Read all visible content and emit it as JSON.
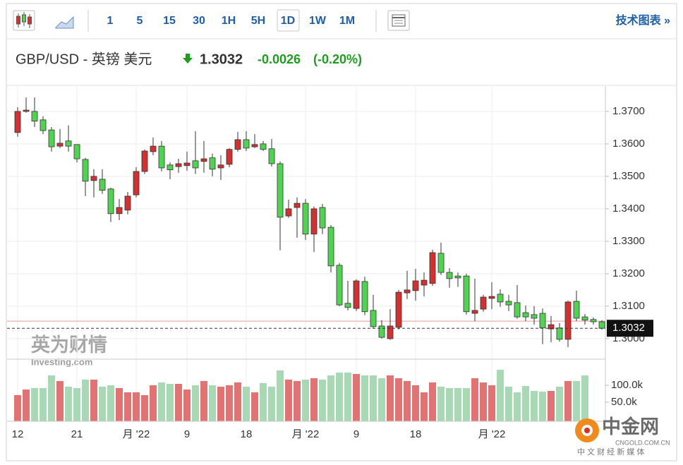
{
  "toolbar": {
    "intervals": [
      "1",
      "5",
      "15",
      "30",
      "1H",
      "5H",
      "1D",
      "1W",
      "1M"
    ],
    "link": "技术图表 »"
  },
  "header": {
    "symbol": "GBP/USD - 英镑 美元",
    "price": "1.3032",
    "change": "-0.0026",
    "change_pct": "(-0.20%)"
  },
  "watermarks": {
    "brand_cn": "英为财情",
    "brand_en": "Investing.com",
    "site": "中金网",
    "site_url": "CNGOLD.COM.CN",
    "site_tagline": "中 文 财 经 新 媒 体"
  },
  "chart_data": {
    "type": "candlestick",
    "categories": [
      "12",
      null,
      null,
      null,
      null,
      null,
      null,
      "21",
      null,
      null,
      null,
      null,
      null,
      null,
      "月 '22",
      null,
      null,
      null,
      null,
      null,
      "9",
      null,
      null,
      null,
      null,
      null,
      null,
      "18",
      null,
      null,
      null,
      null,
      null,
      null,
      "月 '22",
      null,
      null,
      null,
      null,
      null,
      "9",
      null,
      null,
      null,
      null,
      null,
      null,
      "18",
      null,
      null,
      null,
      null,
      null,
      null,
      null,
      null,
      "月 '22",
      null,
      null,
      null,
      null,
      null,
      null,
      null,
      null,
      null,
      null,
      null,
      null,
      null
    ],
    "open": [
      1.3635,
      1.37,
      1.37,
      1.3674,
      1.3643,
      1.3593,
      1.3609,
      1.3598,
      1.3552,
      1.3487,
      1.3491,
      1.3461,
      1.3385,
      1.3396,
      1.3443,
      1.3515,
      1.3576,
      1.3593,
      1.3535,
      1.353,
      1.3533,
      1.3548,
      1.3546,
      1.3557,
      1.3526,
      1.3537,
      1.3583,
      1.3613,
      1.3591,
      1.36,
      1.3585,
      1.3539,
      1.3378,
      1.3404,
      1.3417,
      1.3322,
      1.3404,
      1.3343,
      1.3226,
      1.3109,
      1.3093,
      1.3176,
      1.3087,
      1.3039,
      1.3,
      1.3035,
      1.3141,
      1.3148,
      1.3165,
      1.317,
      1.3263,
      1.3204,
      1.3193,
      1.3193,
      1.3078,
      1.3091,
      1.3124,
      1.3137,
      1.3115,
      1.3111,
      1.308,
      1.3074,
      1.3078,
      1.303,
      1.3033,
      1.2998,
      1.3115,
      1.3067,
      1.3059,
      1.3052
    ],
    "high": [
      1.3713,
      1.3743,
      1.3743,
      1.3685,
      1.3652,
      1.3646,
      1.3657,
      1.3598,
      1.3557,
      1.3522,
      1.3522,
      1.3465,
      1.343,
      1.3452,
      1.3528,
      1.3583,
      1.362,
      1.3609,
      1.3543,
      1.3554,
      1.3576,
      1.3639,
      1.3609,
      1.357,
      1.3565,
      1.3587,
      1.3637,
      1.3639,
      1.363,
      1.3609,
      1.3615,
      1.3546,
      1.3428,
      1.3435,
      1.343,
      1.3407,
      1.3415,
      1.335,
      1.3233,
      1.3178,
      1.3183,
      1.3191,
      1.3135,
      1.3057,
      1.3091,
      1.315,
      1.3209,
      1.3215,
      1.3204,
      1.3274,
      1.3296,
      1.3217,
      1.3204,
      1.32,
      1.3185,
      1.3135,
      1.3174,
      1.3152,
      1.3135,
      1.3165,
      1.3102,
      1.31,
      1.3093,
      1.307,
      1.3048,
      1.3117,
      1.3148,
      1.3076,
      1.3065,
      1.3057
    ],
    "low": [
      1.3622,
      1.3696,
      1.3652,
      1.363,
      1.3576,
      1.3587,
      1.3576,
      1.3543,
      1.3439,
      1.3435,
      1.3446,
      1.3359,
      1.3365,
      1.3383,
      1.3435,
      1.3507,
      1.3565,
      1.3515,
      1.3491,
      1.3511,
      1.3517,
      1.3507,
      1.3511,
      1.35,
      1.3489,
      1.3528,
      1.3576,
      1.3578,
      1.3587,
      1.3578,
      1.353,
      1.3272,
      1.3372,
      1.3311,
      1.3304,
      1.3267,
      1.3322,
      1.3204,
      1.31,
      1.3087,
      1.3085,
      1.3072,
      1.3033,
      1.3,
      1.2996,
      1.3028,
      1.3122,
      1.3117,
      1.313,
      1.3163,
      1.3196,
      1.3157,
      1.3159,
      1.3074,
      1.3054,
      1.3083,
      1.3091,
      1.3098,
      1.3085,
      1.3061,
      1.3054,
      1.3043,
      1.2983,
      1.2989,
      1.2991,
      1.2974,
      1.3054,
      1.3043,
      1.3043,
      1.3028
    ],
    "close": [
      1.37,
      1.3704,
      1.367,
      1.3641,
      1.3591,
      1.3602,
      1.3593,
      1.3554,
      1.3485,
      1.35,
      1.3457,
      1.3385,
      1.3404,
      1.3439,
      1.3515,
      1.3578,
      1.3593,
      1.3526,
      1.352,
      1.3539,
      1.3541,
      1.3526,
      1.3554,
      1.3522,
      1.3535,
      1.3583,
      1.3613,
      1.3587,
      1.3598,
      1.3583,
      1.3539,
      1.3374,
      1.34,
      1.3417,
      1.3322,
      1.34,
      1.3341,
      1.3224,
      1.3104,
      1.3096,
      1.3178,
      1.3083,
      1.3037,
      1.3004,
      1.3039,
      1.3143,
      1.315,
      1.3178,
      1.318,
      1.3265,
      1.3204,
      1.3185,
      1.3187,
      1.3083,
      1.3087,
      1.3128,
      1.313,
      1.3113,
      1.3104,
      1.3067,
      1.3067,
      1.3063,
      1.3033,
      1.3043,
      1.2998,
      1.3113,
      1.3063,
      1.3057,
      1.3052,
      1.3032
    ],
    "ylim": [
      1.2939,
      1.3778
    ],
    "yticks": [
      {
        "value": 1.3,
        "label": "1.3000"
      },
      {
        "value": 1.31,
        "label": "1.3100"
      },
      {
        "value": 1.32,
        "label": "1.3200"
      },
      {
        "value": 1.33,
        "label": "1.3300"
      },
      {
        "value": 1.34,
        "label": "1.3400"
      },
      {
        "value": 1.35,
        "label": "1.3500"
      },
      {
        "value": 1.36,
        "label": "1.3600"
      },
      {
        "value": 1.37,
        "label": "1.3700"
      }
    ],
    "last_price": {
      "value": 1.3032,
      "label": "1.3032"
    },
    "reference_line": 1.3054,
    "up_color": "#d62f2f",
    "down_color": "#4fd44f",
    "volume": {
      "values": [
        71000,
        87500,
        91700,
        91700,
        129200,
        112500,
        95800,
        91700,
        116700,
        116700,
        95800,
        100000,
        91700,
        79200,
        79200,
        70800,
        100000,
        108300,
        104200,
        104200,
        87500,
        100000,
        112500,
        100000,
        95800,
        100000,
        108300,
        95800,
        79200,
        106300,
        95800,
        143800,
        116700,
        112500,
        116700,
        120800,
        116700,
        129200,
        137500,
        137500,
        133300,
        129200,
        129200,
        120800,
        129200,
        120800,
        112500,
        100000,
        79200,
        108300,
        95800,
        91700,
        91700,
        91700,
        120800,
        108300,
        100000,
        145800,
        95800,
        79200,
        97900,
        83300,
        81300,
        83300,
        95800,
        112500,
        112500,
        129200,
        null,
        null
      ],
      "ylim": [
        0,
        175000
      ],
      "yticks": [
        {
          "value": 50000,
          "label": "50.0k"
        },
        {
          "value": 100000,
          "label": "100.0k"
        }
      ],
      "up_color": "#e37373",
      "down_color": "#a9d9b4"
    },
    "grid": true
  }
}
